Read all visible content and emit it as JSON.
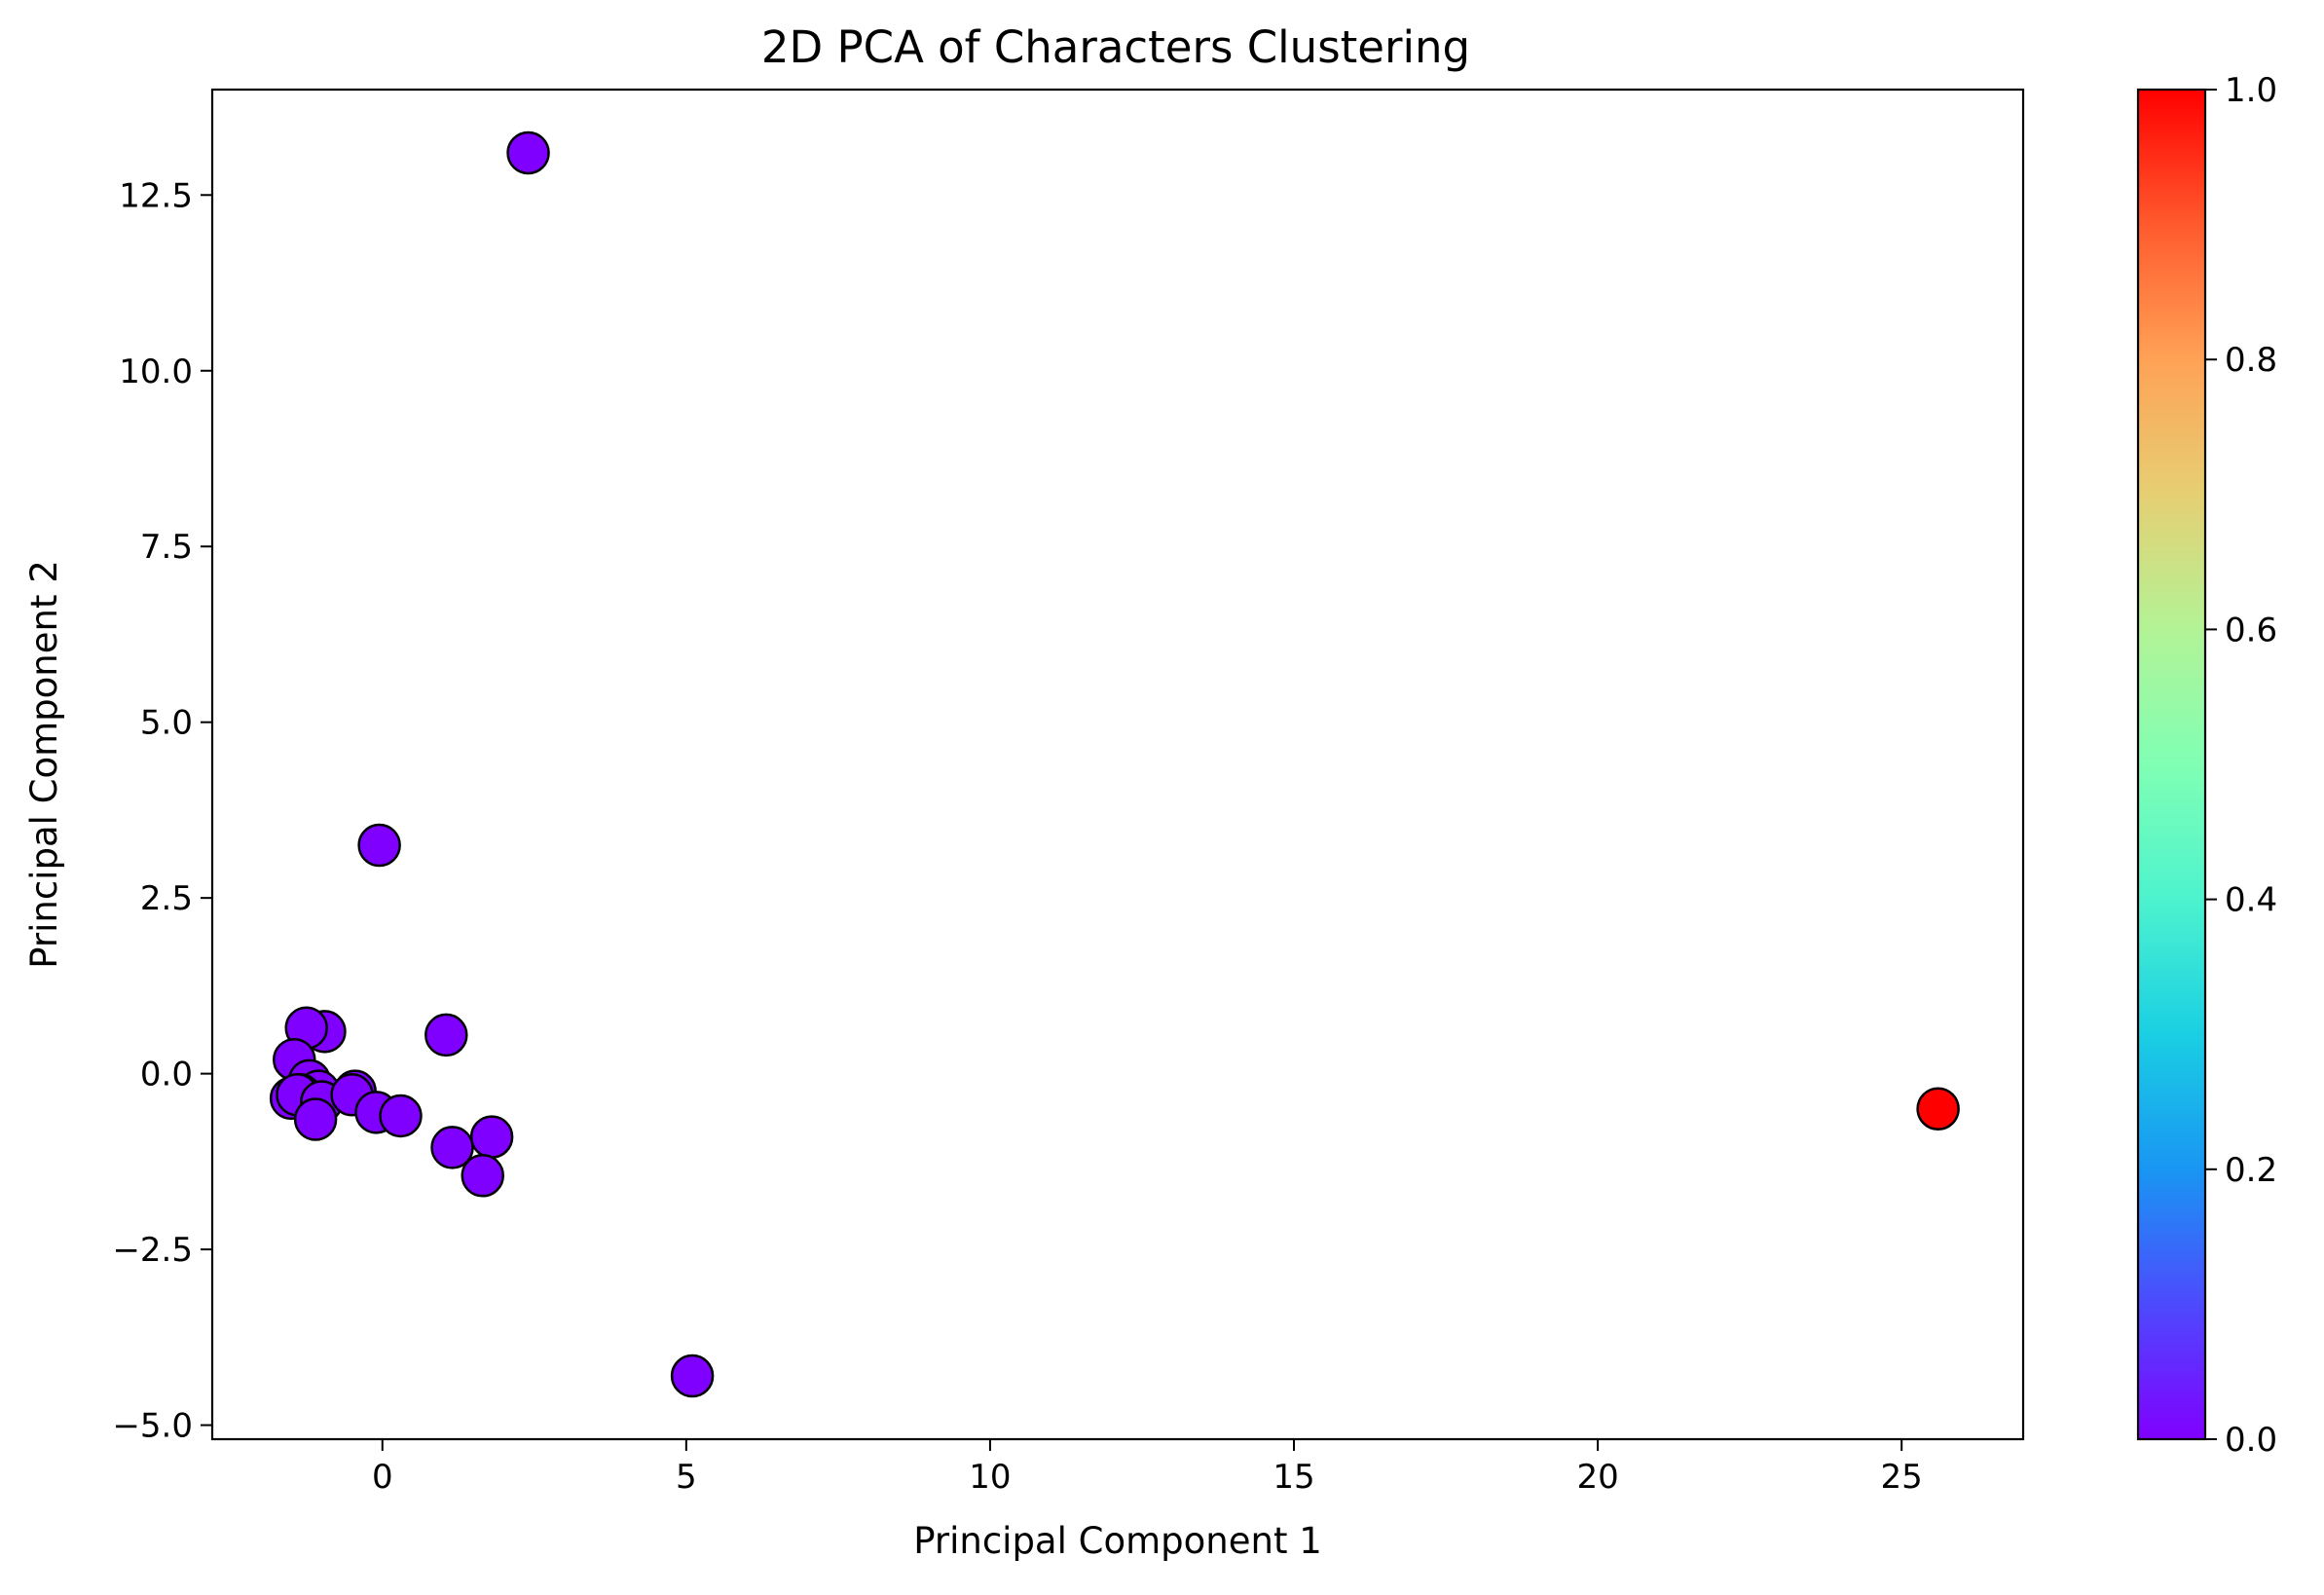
{
  "chart_data": {
    "type": "scatter",
    "title": "2D PCA of Characters Clustering",
    "xlabel": "Principal Component 1",
    "ylabel": "Principal Component 2",
    "xlim": [
      -2.8,
      27.0
    ],
    "ylim": [
      -5.2,
      14.0
    ],
    "xticks": [
      0,
      5,
      10,
      15,
      20,
      25
    ],
    "xtick_labels": [
      "0",
      "5",
      "10",
      "15",
      "20",
      "25"
    ],
    "yticks": [
      -5.0,
      -2.5,
      0.0,
      2.5,
      5.0,
      7.5,
      10.0,
      12.5
    ],
    "ytick_labels": [
      "−5.0",
      "−2.5",
      "0.0",
      "2.5",
      "5.0",
      "7.5",
      "10.0",
      "12.5"
    ],
    "grid": false,
    "colormap": "rainbow",
    "colorbar": {
      "range": [
        0.0,
        1.0
      ],
      "ticks": [
        0.0,
        0.2,
        0.4,
        0.6,
        0.8,
        1.0
      ],
      "tick_labels": [
        "0.0",
        "0.2",
        "0.4",
        "0.6",
        "0.8",
        "1.0"
      ],
      "gradient_stops": [
        {
          "at": 0.0,
          "color": "#8000ff"
        },
        {
          "at": 0.1,
          "color": "#4d4afd"
        },
        {
          "at": 0.2,
          "color": "#1996f3"
        },
        {
          "at": 0.3,
          "color": "#1acfe3"
        },
        {
          "at": 0.4,
          "color": "#4df3ce"
        },
        {
          "at": 0.5,
          "color": "#80ffb4"
        },
        {
          "at": 0.6,
          "color": "#b3f396"
        },
        {
          "at": 0.7,
          "color": "#e6cf73"
        },
        {
          "at": 0.8,
          "color": "#ffa256"
        },
        {
          "at": 0.9,
          "color": "#ff5a2d"
        },
        {
          "at": 1.0,
          "color": "#ff0000"
        }
      ]
    },
    "marker_edge_color": "#000000",
    "points": [
      {
        "x": 2.4,
        "y": 13.1,
        "cluster": 0
      },
      {
        "x": -0.05,
        "y": 3.25,
        "cluster": 0
      },
      {
        "x": 1.05,
        "y": 0.55,
        "cluster": 0
      },
      {
        "x": -0.95,
        "y": 0.6,
        "cluster": 0
      },
      {
        "x": -1.25,
        "y": 0.65,
        "cluster": 0
      },
      {
        "x": -1.45,
        "y": 0.2,
        "cluster": 0
      },
      {
        "x": -1.2,
        "y": -0.1,
        "cluster": 0
      },
      {
        "x": -1.05,
        "y": -0.25,
        "cluster": 0
      },
      {
        "x": -1.35,
        "y": -0.3,
        "cluster": 0
      },
      {
        "x": -1.5,
        "y": -0.35,
        "cluster": 0
      },
      {
        "x": -1.4,
        "y": -0.3,
        "cluster": 0
      },
      {
        "x": -1.0,
        "y": -0.4,
        "cluster": 0
      },
      {
        "x": -1.1,
        "y": -0.65,
        "cluster": 0
      },
      {
        "x": -0.45,
        "y": -0.25,
        "cluster": 0
      },
      {
        "x": -0.5,
        "y": -0.3,
        "cluster": 0
      },
      {
        "x": -0.1,
        "y": -0.55,
        "cluster": 0
      },
      {
        "x": 0.3,
        "y": -0.6,
        "cluster": 0
      },
      {
        "x": 1.15,
        "y": -1.05,
        "cluster": 0
      },
      {
        "x": 1.8,
        "y": -0.9,
        "cluster": 0
      },
      {
        "x": 1.65,
        "y": -1.45,
        "cluster": 0
      },
      {
        "x": 5.1,
        "y": -4.3,
        "cluster": 0
      },
      {
        "x": 25.6,
        "y": -0.5,
        "cluster": 1
      }
    ]
  }
}
